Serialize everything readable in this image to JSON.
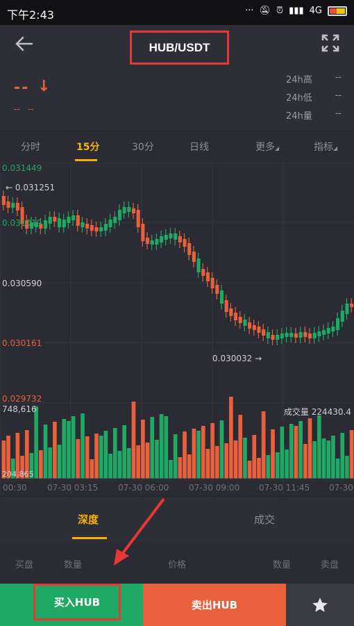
{
  "status_bar": {
    "time": "下午2:43",
    "network": "4G"
  },
  "header": {
    "pair": "HUB/USDT",
    "price_main": "--",
    "price_sub_1": "--",
    "price_sub_2": "--",
    "stats": [
      {
        "label": "24h高",
        "value": "--"
      },
      {
        "label": "24h低",
        "value": "--"
      },
      {
        "label": "24h量",
        "value": "--"
      }
    ]
  },
  "timeframes": {
    "items": [
      "分时",
      "15分",
      "30分",
      "日线",
      "更多",
      "指标"
    ],
    "active": "15分"
  },
  "chart": {
    "y_labels": [
      "0.031449",
      "0.031019",
      "0.030590",
      "0.030161",
      "0.029732"
    ],
    "high_annotation": "0.031251",
    "low_annotation": "0.030032",
    "volume_max": "748,616",
    "volume_min": "204,865",
    "volume_label": "成交量 224430.4",
    "x_labels": [
      "00:30",
      "07-30 03:15",
      "07-30 06:00",
      "07-30 09:00",
      "07-30 11:45",
      "07-30"
    ]
  },
  "depth_tabs": {
    "items": [
      "深度",
      "成交"
    ],
    "active": "深度"
  },
  "depth_header": {
    "buy": "买盘",
    "qty_left": "数量",
    "price": "价格",
    "qty_right": "数量",
    "sell": "卖盘"
  },
  "actions": {
    "buy": "买入HUB",
    "sell": "卖出HUB"
  },
  "colors": {
    "up": "#20a865",
    "down": "#e8603c",
    "accent": "#f5b400",
    "highlight": "#e53935"
  },
  "chart_data": {
    "type": "candlestick",
    "ylim": [
      0.029732,
      0.031449
    ],
    "high": 0.031251,
    "low": 0.030032
  }
}
